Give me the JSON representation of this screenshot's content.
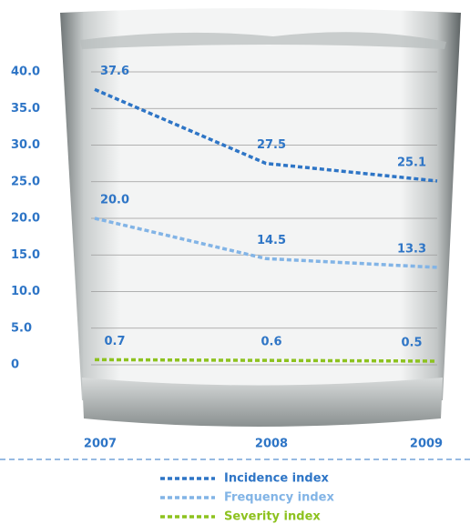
{
  "chart_data": {
    "type": "line",
    "categories": [
      "2007",
      "2008",
      "2009"
    ],
    "series": [
      {
        "name": "Incidence index",
        "color": "#2e75c6",
        "values": [
          37.6,
          27.5,
          25.1
        ]
      },
      {
        "name": "Frequency index",
        "color": "#82b4e6",
        "values": [
          20.0,
          14.5,
          13.3
        ],
        "value_labels": [
          "20.0",
          "14.5",
          "13.3"
        ]
      },
      {
        "name": "Severity index",
        "color": "#8dc21f",
        "values": [
          0.7,
          0.6,
          0.5
        ]
      }
    ],
    "ylim": [
      0,
      40
    ],
    "yticks": [
      0,
      {
        "value": 5,
        "label": "5.0"
      },
      {
        "value": 10,
        "label": "10.0"
      },
      {
        "value": 15,
        "label": "15.0"
      },
      {
        "value": 20,
        "label": "20.0"
      },
      {
        "value": 25,
        "label": "25.0"
      },
      {
        "value": 30,
        "label": "30.0"
      },
      {
        "value": 35,
        "label": "35.0"
      },
      {
        "value": 40,
        "label": "40.0"
      }
    ],
    "grid": true,
    "legend": "bottom"
  }
}
